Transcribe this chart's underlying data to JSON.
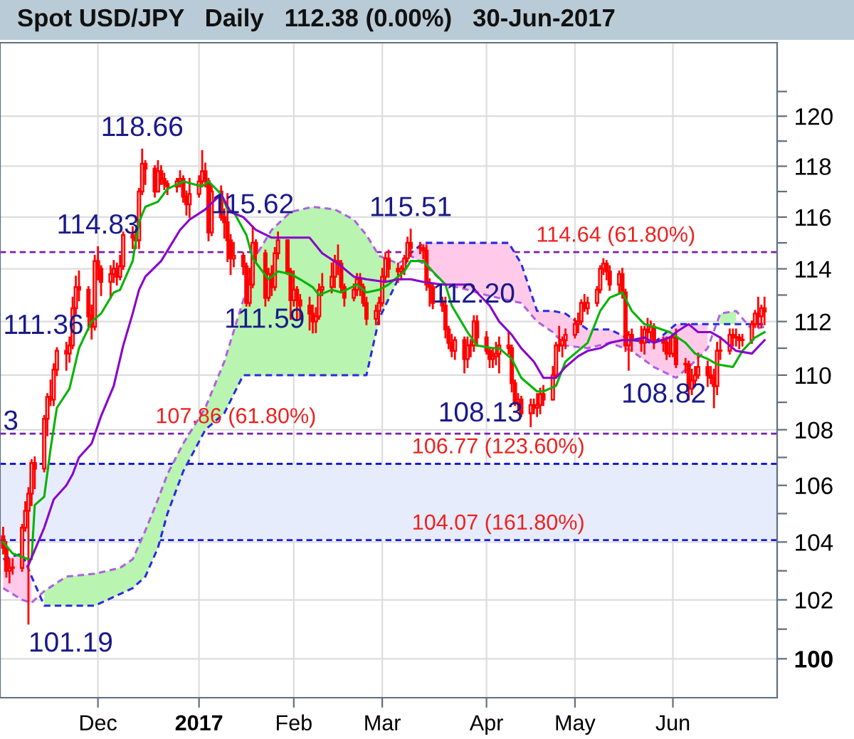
{
  "chart_data": {
    "type": "candlestick",
    "title": "Spot USD/JPY   Daily   112.38 (0.00%)   30-Jun-2017",
    "color": "#ff0000",
    "log": true,
    "grid": true,
    "ylim": [
      98.7,
      123.0
    ],
    "yticks": [
      100,
      {
        "value": 101,
        "label": null
      },
      102,
      {
        "value": 103,
        "label": null
      },
      104,
      {
        "value": 105,
        "label": null
      },
      106,
      {
        "value": 107,
        "label": null
      },
      108,
      {
        "value": 109,
        "label": null
      },
      110,
      {
        "value": 111,
        "label": null
      },
      112,
      {
        "value": 113,
        "label": null
      },
      114,
      {
        "value": 115,
        "label": null
      },
      116,
      {
        "value": 117,
        "label": null
      },
      118,
      {
        "value": 119,
        "label": null
      },
      120,
      {
        "value": 121,
        "label": null
      }
    ],
    "xlim": [
      "2016-10-31",
      "2017-07-04"
    ],
    "xticks": [
      {
        "value": "2016-12-01",
        "label": "Dec"
      },
      {
        "value": "2017-01-02",
        "label": "2017"
      },
      {
        "value": "2017-02-01",
        "label": "Feb"
      },
      {
        "value": "2017-03-01",
        "label": "Mar"
      },
      {
        "value": "2017-04-03",
        "label": "Apr"
      },
      {
        "value": "2017-05-01",
        "label": "May"
      },
      {
        "value": "2017-06-01",
        "label": "Jun"
      }
    ],
    "x": [
      "2016-11-01",
      "2016-11-02",
      "2016-11-03",
      "2016-11-04",
      "2016-11-07",
      "2016-11-08",
      "2016-11-09",
      "2016-11-10",
      "2016-11-11",
      "2016-11-14",
      "2016-11-15",
      "2016-11-16",
      "2016-11-17",
      "2016-11-18",
      "2016-11-21",
      "2016-11-22",
      "2016-11-23",
      "2016-11-24",
      "2016-11-25",
      "2016-11-28",
      "2016-11-29",
      "2016-11-30",
      "2016-12-01",
      "2016-12-02",
      "2016-12-05",
      "2016-12-06",
      "2016-12-07",
      "2016-12-08",
      "2016-12-09",
      "2016-12-12",
      "2016-12-13",
      "2016-12-14",
      "2016-12-15",
      "2016-12-16",
      "2016-12-19",
      "2016-12-20",
      "2016-12-21",
      "2016-12-22",
      "2016-12-23",
      "2016-12-26",
      "2016-12-27",
      "2016-12-28",
      "2016-12-29",
      "2016-12-30",
      "2017-01-02",
      "2017-01-03",
      "2017-01-04",
      "2017-01-05",
      "2017-01-06",
      "2017-01-09",
      "2017-01-10",
      "2017-01-11",
      "2017-01-12",
      "2017-01-13",
      "2017-01-16",
      "2017-01-17",
      "2017-01-18",
      "2017-01-19",
      "2017-01-20",
      "2017-01-23",
      "2017-01-24",
      "2017-01-25",
      "2017-01-26",
      "2017-01-27",
      "2017-01-30",
      "2017-01-31",
      "2017-02-01",
      "2017-02-02",
      "2017-02-03",
      "2017-02-06",
      "2017-02-07",
      "2017-02-08",
      "2017-02-09",
      "2017-02-10",
      "2017-02-13",
      "2017-02-14",
      "2017-02-15",
      "2017-02-16",
      "2017-02-17",
      "2017-02-20",
      "2017-02-21",
      "2017-02-22",
      "2017-02-23",
      "2017-02-24",
      "2017-02-27",
      "2017-02-28",
      "2017-03-01",
      "2017-03-02",
      "2017-03-03",
      "2017-03-06",
      "2017-03-07",
      "2017-03-08",
      "2017-03-09",
      "2017-03-10",
      "2017-03-13",
      "2017-03-14",
      "2017-03-15",
      "2017-03-16",
      "2017-03-17",
      "2017-03-20",
      "2017-03-21",
      "2017-03-22",
      "2017-03-23",
      "2017-03-24",
      "2017-03-27",
      "2017-03-28",
      "2017-03-29",
      "2017-03-30",
      "2017-03-31",
      "2017-04-03",
      "2017-04-04",
      "2017-04-05",
      "2017-04-06",
      "2017-04-07",
      "2017-04-10",
      "2017-04-11",
      "2017-04-12",
      "2017-04-13",
      "2017-04-14",
      "2017-04-17",
      "2017-04-18",
      "2017-04-19",
      "2017-04-20",
      "2017-04-21",
      "2017-04-24",
      "2017-04-25",
      "2017-04-26",
      "2017-04-27",
      "2017-04-28",
      "2017-05-01",
      "2017-05-02",
      "2017-05-03",
      "2017-05-04",
      "2017-05-05",
      "2017-05-08",
      "2017-05-09",
      "2017-05-10",
      "2017-05-11",
      "2017-05-12",
      "2017-05-15",
      "2017-05-16",
      "2017-05-17",
      "2017-05-18",
      "2017-05-19",
      "2017-05-22",
      "2017-05-23",
      "2017-05-24",
      "2017-05-25",
      "2017-05-26",
      "2017-05-29",
      "2017-05-30",
      "2017-05-31",
      "2017-06-01",
      "2017-06-02",
      "2017-06-05",
      "2017-06-06",
      "2017-06-07",
      "2017-06-08",
      "2017-06-09",
      "2017-06-12",
      "2017-06-13",
      "2017-06-14",
      "2017-06-15",
      "2017-06-16",
      "2017-06-19",
      "2017-06-20",
      "2017-06-21",
      "2017-06-22",
      "2017-06-23",
      "2017-06-26",
      "2017-06-27",
      "2017-06-28",
      "2017-06-29",
      "2017-06-30"
    ],
    "ohlc": [
      [
        104.2,
        104.5,
        103.6,
        103.8
      ],
      [
        103.8,
        104.0,
        102.8,
        103.0
      ],
      [
        103.0,
        103.4,
        102.6,
        103.1
      ],
      [
        103.1,
        103.4,
        102.9,
        103.1
      ],
      [
        103.1,
        104.6,
        103.0,
        104.5
      ],
      [
        104.5,
        105.4,
        104.4,
        105.1
      ],
      [
        105.1,
        105.9,
        101.19,
        105.7
      ],
      [
        105.7,
        106.9,
        105.3,
        106.8
      ],
      [
        106.8,
        107.0,
        105.9,
        106.6
      ],
      [
        106.6,
        108.5,
        106.5,
        108.4
      ],
      [
        108.4,
        109.3,
        107.8,
        109.2
      ],
      [
        109.2,
        109.8,
        108.9,
        109.1
      ],
      [
        109.1,
        110.4,
        108.9,
        110.2
      ],
      [
        110.2,
        111.0,
        110.0,
        110.9
      ],
      [
        110.9,
        111.2,
        110.2,
        110.8
      ],
      [
        110.8,
        111.4,
        110.5,
        111.1
      ],
      [
        111.1,
        112.9,
        111.0,
        112.5
      ],
      [
        112.5,
        113.7,
        112.3,
        113.3
      ],
      [
        113.3,
        113.9,
        112.8,
        113.2
      ],
      [
        113.2,
        113.3,
        111.7,
        112.2
      ],
      [
        112.2,
        112.6,
        111.36,
        111.8
      ],
      [
        111.8,
        114.5,
        111.7,
        114.3
      ],
      [
        114.3,
        114.83,
        113.6,
        114.0
      ],
      [
        114.0,
        114.1,
        113.0,
        113.5
      ],
      [
        113.5,
        114.1,
        112.9,
        113.8
      ],
      [
        113.8,
        114.3,
        113.5,
        114.0
      ],
      [
        114.0,
        114.2,
        113.4,
        113.7
      ],
      [
        113.7,
        114.5,
        113.6,
        114.1
      ],
      [
        114.1,
        115.4,
        114.0,
        115.3
      ],
      [
        115.3,
        115.6,
        114.8,
        115.2
      ],
      [
        115.2,
        115.5,
        114.8,
        115.1
      ],
      [
        115.1,
        117.1,
        114.8,
        117.0
      ],
      [
        117.0,
        118.66,
        116.9,
        118.1
      ],
      [
        118.1,
        118.2,
        117.3,
        117.9
      ],
      [
        117.9,
        118.0,
        116.8,
        117.0
      ],
      [
        117.0,
        118.2,
        117.0,
        117.8
      ],
      [
        117.8,
        118.0,
        117.3,
        117.5
      ],
      [
        117.5,
        117.7,
        117.1,
        117.3
      ],
      [
        117.3,
        117.4,
        116.9,
        117.2
      ],
      [
        117.2,
        117.5,
        117.0,
        117.4
      ],
      [
        117.4,
        117.8,
        117.2,
        117.5
      ],
      [
        117.5,
        117.6,
        116.6,
        116.8
      ],
      [
        116.8,
        117.0,
        116.1,
        116.5
      ],
      [
        116.5,
        117.5,
        116.0,
        116.9
      ],
      [
        116.9,
        117.6,
        116.8,
        117.4
      ],
      [
        117.4,
        118.6,
        117.3,
        117.8
      ],
      [
        117.8,
        118.1,
        117.2,
        117.4
      ],
      [
        117.4,
        117.5,
        115.1,
        115.4
      ],
      [
        115.4,
        117.2,
        115.3,
        117.0
      ],
      [
        117.0,
        117.2,
        115.9,
        116.0
      ],
      [
        116.0,
        116.3,
        115.2,
        115.8
      ],
      [
        115.8,
        116.9,
        114.3,
        115.1
      ],
      [
        115.1,
        115.3,
        113.8,
        114.4
      ],
      [
        114.4,
        115.0,
        114.1,
        114.5
      ],
      [
        114.5,
        114.6,
        113.8,
        114.1
      ],
      [
        114.1,
        114.2,
        112.6,
        112.7
      ],
      [
        112.7,
        114.0,
        112.6,
        113.4
      ],
      [
        113.4,
        115.62,
        113.3,
        115.0
      ],
      [
        115.0,
        115.1,
        114.3,
        114.6
      ],
      [
        114.6,
        114.7,
        112.6,
        112.9
      ],
      [
        112.9,
        114.0,
        112.8,
        113.8
      ],
      [
        113.8,
        114.1,
        113.0,
        113.3
      ],
      [
        113.3,
        114.8,
        113.2,
        114.6
      ],
      [
        114.6,
        115.4,
        114.4,
        115.1
      ],
      [
        115.1,
        115.1,
        113.8,
        113.9
      ],
      [
        113.9,
        114.0,
        112.1,
        112.8
      ],
      [
        112.8,
        113.9,
        112.6,
        113.2
      ],
      [
        113.2,
        113.3,
        112.1,
        112.8
      ],
      [
        112.8,
        113.0,
        112.1,
        112.6
      ],
      [
        112.6,
        112.9,
        111.7,
        112.3
      ],
      [
        112.3,
        112.6,
        111.59,
        112.0
      ],
      [
        112.0,
        112.5,
        111.6,
        112.2
      ],
      [
        112.2,
        113.4,
        112.1,
        113.2
      ],
      [
        113.2,
        113.8,
        113.0,
        113.3
      ],
      [
        113.3,
        114.2,
        113.1,
        113.7
      ],
      [
        113.7,
        114.5,
        113.3,
        114.3
      ],
      [
        114.3,
        114.9,
        113.8,
        114.2
      ],
      [
        114.2,
        114.3,
        113.1,
        113.3
      ],
      [
        113.3,
        113.4,
        112.6,
        112.9
      ],
      [
        112.9,
        113.4,
        112.8,
        113.2
      ],
      [
        113.2,
        113.8,
        113.0,
        113.6
      ],
      [
        113.6,
        113.8,
        113.0,
        113.3
      ],
      [
        113.3,
        113.4,
        112.6,
        112.7
      ],
      [
        112.7,
        112.9,
        111.9,
        112.1
      ],
      [
        112.1,
        112.6,
        111.9,
        112.4
      ],
      [
        112.4,
        112.9,
        111.9,
        112.7
      ],
      [
        112.7,
        114.0,
        112.6,
        113.7
      ],
      [
        113.7,
        114.6,
        113.5,
        114.4
      ],
      [
        114.4,
        114.7,
        113.7,
        114.0
      ],
      [
        114.0,
        114.2,
        113.5,
        113.9
      ],
      [
        113.9,
        114.1,
        113.6,
        114.0
      ],
      [
        114.0,
        114.5,
        113.8,
        114.4
      ],
      [
        114.4,
        115.2,
        114.3,
        115.0
      ],
      [
        115.0,
        115.51,
        114.5,
        114.8
      ],
      [
        114.8,
        115.0,
        114.6,
        114.8
      ],
      [
        114.8,
        114.9,
        114.4,
        114.7
      ],
      [
        114.7,
        114.9,
        113.2,
        113.4
      ],
      [
        113.4,
        113.6,
        112.6,
        113.3
      ],
      [
        113.3,
        113.4,
        112.5,
        112.7
      ],
      [
        112.7,
        112.9,
        112.4,
        112.6
      ],
      [
        112.6,
        112.9,
        111.4,
        111.7
      ],
      [
        111.7,
        111.8,
        111.0,
        111.2
      ],
      [
        111.2,
        111.5,
        110.7,
        110.9
      ],
      [
        110.9,
        111.4,
        110.6,
        111.3
      ],
      [
        111.3,
        111.4,
        110.1,
        110.6
      ],
      [
        110.6,
        111.4,
        110.3,
        111.1
      ],
      [
        111.1,
        111.3,
        110.7,
        111.1
      ],
      [
        111.1,
        112.2,
        110.9,
        112.0
      ],
      [
        112.0,
        112.2,
        111.1,
        111.4
      ],
      [
        111.4,
        111.6,
        110.8,
        110.9
      ],
      [
        110.9,
        111.0,
        110.3,
        110.6
      ],
      [
        110.6,
        111.0,
        110.3,
        110.7
      ],
      [
        110.7,
        111.2,
        110.4,
        110.8
      ],
      [
        110.8,
        111.4,
        110.1,
        111.1
      ],
      [
        111.1,
        111.6,
        110.8,
        111.0
      ],
      [
        111.0,
        111.1,
        109.4,
        109.7
      ],
      [
        109.7,
        109.8,
        108.9,
        109.0
      ],
      [
        109.0,
        109.3,
        108.7,
        109.1
      ],
      [
        109.1,
        109.2,
        108.5,
        108.6
      ],
      [
        108.6,
        109.1,
        108.13,
        108.9
      ],
      [
        108.9,
        109.1,
        108.6,
        108.8
      ],
      [
        108.8,
        109.3,
        108.5,
        108.9
      ],
      [
        108.9,
        109.5,
        108.6,
        109.3
      ],
      [
        109.3,
        109.6,
        108.9,
        109.1
      ],
      [
        109.1,
        110.3,
        109.1,
        110.0
      ],
      [
        110.0,
        111.2,
        109.9,
        111.1
      ],
      [
        111.1,
        111.8,
        110.9,
        111.1
      ],
      [
        111.1,
        111.4,
        110.7,
        111.3
      ],
      [
        111.3,
        111.7,
        111.0,
        111.5
      ],
      [
        111.5,
        112.1,
        111.4,
        111.9
      ],
      [
        111.9,
        112.3,
        111.6,
        112.0
      ],
      [
        112.0,
        112.8,
        111.9,
        112.7
      ],
      [
        112.7,
        113.0,
        112.4,
        112.5
      ],
      [
        112.5,
        112.9,
        112.3,
        112.7
      ],
      [
        112.7,
        113.3,
        112.6,
        113.2
      ],
      [
        113.2,
        114.1,
        113.1,
        114.0
      ],
      [
        114.0,
        114.37,
        113.8,
        114.2
      ],
      [
        114.2,
        114.3,
        113.6,
        113.9
      ],
      [
        113.9,
        114.1,
        113.2,
        113.4
      ],
      [
        113.4,
        113.9,
        113.1,
        113.8
      ],
      [
        113.8,
        114.0,
        112.9,
        113.1
      ],
      [
        113.1,
        113.2,
        110.9,
        111.1
      ],
      [
        111.1,
        111.6,
        110.2,
        111.5
      ],
      [
        111.5,
        111.7,
        110.9,
        111.3
      ],
      [
        111.3,
        111.8,
        110.9,
        111.2
      ],
      [
        111.2,
        111.8,
        110.8,
        111.7
      ],
      [
        111.7,
        112.1,
        111.3,
        111.6
      ],
      [
        111.6,
        112.0,
        111.3,
        111.8
      ],
      [
        111.8,
        111.9,
        111.0,
        111.3
      ],
      [
        111.3,
        111.4,
        110.9,
        111.2
      ],
      [
        111.2,
        111.4,
        110.6,
        110.8
      ],
      [
        110.8,
        111.4,
        110.7,
        110.8
      ],
      [
        110.8,
        111.5,
        110.7,
        111.4
      ],
      [
        111.4,
        111.7,
        110.3,
        110.4
      ],
      [
        110.4,
        110.6,
        110.1,
        110.4
      ],
      [
        110.4,
        110.5,
        109.1,
        109.5
      ],
      [
        109.5,
        110.2,
        109.3,
        109.8
      ],
      [
        109.8,
        110.3,
        109.6,
        110.0
      ],
      [
        110.0,
        110.8,
        109.9,
        110.3
      ],
      [
        110.3,
        110.5,
        109.6,
        110.0
      ],
      [
        110.0,
        110.3,
        109.7,
        109.9
      ],
      [
        109.9,
        110.2,
        108.82,
        109.6
      ],
      [
        109.6,
        111.2,
        109.3,
        110.9
      ],
      [
        110.9,
        111.4,
        110.6,
        110.9
      ],
      [
        110.9,
        111.7,
        110.8,
        111.5
      ],
      [
        111.5,
        111.7,
        111.1,
        111.4
      ],
      [
        111.4,
        111.7,
        111.1,
        111.4
      ],
      [
        111.4,
        111.5,
        111.0,
        111.3
      ],
      [
        111.3,
        111.5,
        111.1,
        111.3
      ],
      [
        111.3,
        112.0,
        111.2,
        111.9
      ],
      [
        111.9,
        112.4,
        111.8,
        112.3
      ],
      [
        112.3,
        112.9,
        111.8,
        112.2
      ],
      [
        112.2,
        112.6,
        111.8,
        112.5
      ],
      [
        112.5,
        112.9,
        111.9,
        112.38
      ]
    ],
    "series": [
      {
        "type": "line",
        "color": "#b060e0",
        "line_style": "dashed",
        "x": [
          "2016-11-01",
          "2016-11-07",
          "2016-11-10",
          "2016-11-14",
          "2016-11-21",
          "2016-11-30",
          "2016-12-08",
          "2016-12-12",
          "2016-12-16",
          "2016-12-20",
          "2016-12-23",
          "2016-12-28",
          "2017-01-04",
          "2017-01-10",
          "2017-01-16",
          "2017-01-20",
          "2017-01-25",
          "2017-01-31",
          "2017-02-07",
          "2017-02-14",
          "2017-02-20",
          "2017-02-24",
          "2017-02-28",
          "2017-03-06",
          "2017-03-10",
          "2017-03-14",
          "2017-03-21",
          "2017-03-28",
          "2017-04-03",
          "2017-04-10",
          "2017-04-14",
          "2017-04-19",
          "2017-04-24",
          "2017-04-28",
          "2017-05-05",
          "2017-05-12",
          "2017-05-19",
          "2017-05-26",
          "2017-06-02",
          "2017-06-07",
          "2017-06-12",
          "2017-06-16",
          "2017-06-21",
          "2017-06-26",
          "2017-06-30"
        ],
        "values": [
          102.4,
          102.0,
          101.9,
          102.3,
          102.8,
          102.9,
          103.1,
          103.4,
          104.4,
          105.5,
          106.4,
          107.5,
          108.8,
          110.5,
          112.8,
          114.5,
          115.5,
          116.2,
          116.4,
          116.3,
          115.9,
          115.3,
          114.5,
          114.2,
          114.5,
          114.2,
          113.4,
          113.2,
          113.0,
          112.8,
          112.7,
          112.0,
          111.6,
          111.1,
          111.0,
          111.2,
          110.9,
          110.3,
          109.9,
          110.4,
          111.0,
          112.3,
          112.4,
          111.7,
          111.8
        ],
        "lower": [
          null,
          null,
          null,
          101.8,
          101.8,
          101.8,
          102.2,
          102.4,
          102.8,
          103.8,
          105.0,
          106.5,
          108.0,
          108.6,
          110.0,
          110.0,
          110.0,
          110.0,
          110.0,
          110.0,
          110.0,
          110.0,
          112.1,
          113.6,
          null,
          null,
          null,
          null,
          null,
          null,
          null,
          null,
          null,
          null,
          null,
          null,
          null,
          null,
          null,
          null,
          null,
          111.9,
          111.9,
          null,
          null
        ],
        "upper": [
          null,
          null,
          null,
          102.3,
          102.8,
          102.9,
          103.1,
          103.4,
          104.4,
          105.5,
          106.4,
          107.5,
          108.8,
          110.5,
          112.8,
          114.5,
          115.5,
          116.2,
          116.4,
          116.3,
          115.9,
          115.3,
          114.5,
          114.2,
          null,
          null,
          null,
          null,
          null,
          null,
          null,
          null,
          null,
          null,
          null,
          null,
          null,
          null,
          null,
          null,
          null,
          112.3,
          112.4,
          null,
          null
        ],
        "colors": [
          null,
          null,
          null,
          "#b9f5b0",
          "#b9f5b0",
          "#b9f5b0",
          "#b9f5b0",
          "#b9f5b0",
          "#b9f5b0",
          "#b9f5b0",
          "#b9f5b0",
          "#b9f5b0",
          "#b9f5b0",
          "#b9f5b0",
          "#b9f5b0",
          "#b9f5b0",
          "#b9f5b0",
          "#b9f5b0",
          "#b9f5b0",
          "#b9f5b0",
          "#b9f5b0",
          "#b9f5b0",
          "#b9f5b0",
          "#b9f5b0",
          null,
          null,
          null,
          null,
          null,
          null,
          null,
          null,
          null,
          null,
          null,
          null,
          null,
          null,
          null,
          null,
          null,
          "#b9f5b0",
          "#b9f5b0",
          null,
          null
        ]
      },
      {
        "type": "line",
        "color": "#2a2ae0",
        "line_style": "dashed",
        "x": [
          "2016-11-01",
          "2016-11-07",
          "2016-11-10",
          "2016-11-14",
          "2016-11-21",
          "2016-11-30",
          "2016-12-08",
          "2016-12-12",
          "2016-12-16",
          "2016-12-20",
          "2016-12-23",
          "2016-12-28",
          "2017-01-04",
          "2017-01-10",
          "2017-01-16",
          "2017-01-20",
          "2017-01-25",
          "2017-01-31",
          "2017-02-07",
          "2017-02-14",
          "2017-02-20",
          "2017-02-24",
          "2017-02-28",
          "2017-03-06",
          "2017-03-10",
          "2017-03-14",
          "2017-03-21",
          "2017-03-28",
          "2017-04-03",
          "2017-04-10",
          "2017-04-14",
          "2017-04-19",
          "2017-04-24",
          "2017-04-28",
          "2017-05-05",
          "2017-05-12",
          "2017-05-19",
          "2017-05-26",
          "2017-06-02",
          "2017-06-07",
          "2017-06-12",
          "2017-06-16",
          "2017-06-21",
          "2017-06-26",
          "2017-06-30"
        ],
        "values": [
          103.4,
          103.6,
          102.8,
          101.8,
          101.8,
          101.8,
          102.2,
          102.4,
          102.8,
          103.8,
          105.0,
          106.5,
          108.0,
          108.6,
          110.0,
          110.0,
          110.0,
          110.0,
          110.0,
          110.0,
          110.0,
          110.0,
          112.1,
          113.6,
          114.6,
          115.0,
          115.0,
          115.0,
          115.0,
          115.0,
          114.2,
          112.4,
          112.4,
          112.3,
          111.7,
          111.7,
          111.3,
          111.2,
          111.9,
          111.9,
          111.9,
          111.9,
          111.9,
          111.9,
          111.9
        ],
        "lower": [
          102.4,
          102.0,
          101.9,
          null,
          null,
          null,
          null,
          null,
          null,
          null,
          null,
          null,
          null,
          null,
          null,
          null,
          null,
          null,
          null,
          null,
          null,
          null,
          null,
          null,
          114.5,
          114.2,
          113.4,
          113.2,
          113.0,
          112.8,
          112.7,
          112.0,
          111.6,
          111.1,
          111.0,
          111.2,
          110.9,
          110.3,
          109.9,
          110.4,
          111.0,
          null,
          null,
          111.7,
          111.8
        ],
        "upper": [
          103.4,
          103.6,
          102.8,
          null,
          null,
          null,
          null,
          null,
          null,
          null,
          null,
          null,
          null,
          null,
          null,
          null,
          null,
          null,
          null,
          null,
          null,
          null,
          null,
          null,
          114.6,
          115.0,
          115.0,
          115.0,
          115.0,
          115.0,
          114.2,
          112.4,
          112.4,
          112.3,
          111.7,
          111.7,
          111.3,
          111.2,
          111.9,
          111.9,
          111.9,
          null,
          null,
          111.9,
          111.9
        ],
        "colors": [
          "#ffcaea",
          "#ffcaea",
          "#ffcaea",
          null,
          null,
          null,
          null,
          null,
          null,
          null,
          null,
          null,
          null,
          null,
          null,
          null,
          null,
          null,
          null,
          null,
          null,
          null,
          null,
          null,
          "#ffcaea",
          "#ffcaea",
          "#ffcaea",
          "#ffcaea",
          "#ffcaea",
          "#ffcaea",
          "#ffcaea",
          "#ffcaea",
          "#ffcaea",
          "#ffcaea",
          "#ffcaea",
          "#ffcaea",
          "#ffcaea",
          "#ffcaea",
          "#ffcaea",
          "#ffcaea",
          "#ffcaea",
          null,
          null,
          "#ffcaea",
          "#ffcaea"
        ]
      },
      {
        "type": "line",
        "color": "#00b400",
        "x": [
          "2016-11-01",
          "2016-11-04",
          "2016-11-09",
          "2016-11-10",
          "2016-11-11",
          "2016-11-14",
          "2016-11-16",
          "2016-11-18",
          "2016-11-22",
          "2016-11-25",
          "2016-11-29",
          "2016-12-02",
          "2016-12-06",
          "2016-12-08",
          "2016-12-12",
          "2016-12-14",
          "2016-12-16",
          "2016-12-20",
          "2016-12-23",
          "2016-12-28",
          "2017-01-03",
          "2017-01-05",
          "2017-01-09",
          "2017-01-11",
          "2017-01-13",
          "2017-01-17",
          "2017-01-19",
          "2017-01-24",
          "2017-01-27",
          "2017-01-31",
          "2017-02-03",
          "2017-02-07",
          "2017-02-09",
          "2017-02-13",
          "2017-02-16",
          "2017-02-21",
          "2017-02-24",
          "2017-02-28",
          "2017-03-03",
          "2017-03-08",
          "2017-03-10",
          "2017-03-14",
          "2017-03-17",
          "2017-03-21",
          "2017-03-23",
          "2017-03-28",
          "2017-03-31",
          "2017-04-05",
          "2017-04-07",
          "2017-04-11",
          "2017-04-14",
          "2017-04-19",
          "2017-04-21",
          "2017-04-25",
          "2017-04-28",
          "2017-05-03",
          "2017-05-05",
          "2017-05-09",
          "2017-05-12",
          "2017-05-16",
          "2017-05-19",
          "2017-05-23",
          "2017-05-26",
          "2017-05-31",
          "2017-06-05",
          "2017-06-08",
          "2017-06-12",
          "2017-06-15",
          "2017-06-20",
          "2017-06-23",
          "2017-06-27",
          "2017-06-30"
        ],
        "values": [
          104.0,
          103.6,
          103.4,
          103.4,
          105.3,
          105.6,
          107.3,
          108.8,
          109.5,
          111.0,
          112.0,
          112.3,
          113.1,
          113.2,
          114.3,
          115.8,
          116.4,
          116.6,
          117.1,
          117.4,
          117.2,
          117.4,
          116.9,
          116.3,
          116.2,
          115.3,
          114.4,
          113.6,
          113.9,
          113.8,
          113.6,
          113.3,
          113.0,
          113.2,
          113.1,
          113.4,
          113.1,
          113.2,
          113.4,
          113.9,
          114.3,
          114.3,
          113.9,
          113.4,
          112.6,
          111.6,
          111.1,
          111.0,
          111.0,
          110.6,
          109.9,
          109.4,
          109.4,
          109.6,
          110.5,
          111.0,
          111.2,
          112.4,
          112.9,
          113.1,
          112.4,
          111.9,
          111.8,
          111.6,
          111.2,
          110.8,
          110.6,
          110.4,
          110.3,
          110.9,
          111.4,
          111.6
        ]
      },
      {
        "type": "line",
        "color": "#8800cc",
        "x": [
          "2016-11-09",
          "2016-11-14",
          "2016-11-17",
          "2016-11-21",
          "2016-11-23",
          "2016-11-25",
          "2016-11-29",
          "2016-12-02",
          "2016-12-06",
          "2016-12-09",
          "2016-12-12",
          "2016-12-14",
          "2016-12-16",
          "2016-12-21",
          "2016-12-27",
          "2016-12-30",
          "2017-01-04",
          "2017-01-09",
          "2017-01-12",
          "2017-01-16",
          "2017-01-20",
          "2017-01-25",
          "2017-02-01",
          "2017-02-06",
          "2017-02-10",
          "2017-02-15",
          "2017-02-20",
          "2017-02-24",
          "2017-03-02",
          "2017-03-06",
          "2017-03-10",
          "2017-03-14",
          "2017-03-20",
          "2017-03-24",
          "2017-03-29",
          "2017-03-31",
          "2017-04-04",
          "2017-04-07",
          "2017-04-11",
          "2017-04-14",
          "2017-04-18",
          "2017-04-21",
          "2017-04-25",
          "2017-04-28",
          "2017-05-02",
          "2017-05-05",
          "2017-05-09",
          "2017-05-12",
          "2017-05-16",
          "2017-05-19",
          "2017-05-23",
          "2017-05-26",
          "2017-05-31",
          "2017-06-02",
          "2017-06-06",
          "2017-06-09",
          "2017-06-13",
          "2017-06-16",
          "2017-06-21",
          "2017-06-26",
          "2017-06-30"
        ],
        "values": [
          103.2,
          104.5,
          105.5,
          106.0,
          106.4,
          107.0,
          107.5,
          108.5,
          109.6,
          111.1,
          112.3,
          113.2,
          113.7,
          114.3,
          115.5,
          115.9,
          116.3,
          116.9,
          116.2,
          116.0,
          115.5,
          115.2,
          115.2,
          115.2,
          114.6,
          114.2,
          113.7,
          113.6,
          113.5,
          113.6,
          113.6,
          113.5,
          113.4,
          113.4,
          113.4,
          113.1,
          112.6,
          112.0,
          111.5,
          111.0,
          110.5,
          109.9,
          109.9,
          110.3,
          110.7,
          110.9,
          111.0,
          111.2,
          111.3,
          111.3,
          111.4,
          111.2,
          111.4,
          111.6,
          111.9,
          111.6,
          111.6,
          111.4,
          110.9,
          110.8,
          111.3
        ]
      }
    ],
    "bands": [
      {
        "axis": "y",
        "from": 104.07,
        "to": 106.77,
        "color": "#e6ecfb"
      }
    ],
    "ref_lines": [
      {
        "axis": "y",
        "value": 114.64,
        "label": "114.64 (61.80%)",
        "color": "#7a1fb0",
        "line_style": "dashed"
      },
      {
        "axis": "y",
        "value": 107.86,
        "label": "107.86 (61.80%)",
        "color": "#7a1fb0",
        "line_style": "dashed"
      },
      {
        "axis": "y",
        "value": 106.77,
        "label": "106.77 (123.60%)",
        "color": "#1a1ae0",
        "line_style": "dashed"
      },
      {
        "axis": "y",
        "value": 104.07,
        "label": "104.07 (161.80%)",
        "color": "#1a1ae0",
        "line_style": "dashed"
      }
    ],
    "annotations": [
      {
        "text": "118.66",
        "x": "2016-12-15",
        "y": 118.66
      },
      {
        "text": "114.83",
        "x": "2016-12-01",
        "y": 114.83
      },
      {
        "text": "111.36",
        "x": "2016-11-29",
        "y": 111.36
      },
      {
        "text": "101.19",
        "x": "2016-11-09",
        "y": 101.19
      },
      "3",
      {
        "text": "115.62",
        "x": "2017-01-19",
        "y": 115.62
      },
      {
        "text": "111.59",
        "x": "2017-02-07",
        "y": 111.59
      },
      {
        "text": "115.51",
        "x": "2017-03-10",
        "y": 115.51
      },
      {
        "text": "112.20",
        "x": "2017-03-30",
        "y": 112.2
      },
      {
        "text": "108.13",
        "x": "2017-04-17",
        "y": 108.13
      },
      {
        "text": "108.82",
        "x": "2017-06-14",
        "y": 108.82
      }
    ]
  }
}
